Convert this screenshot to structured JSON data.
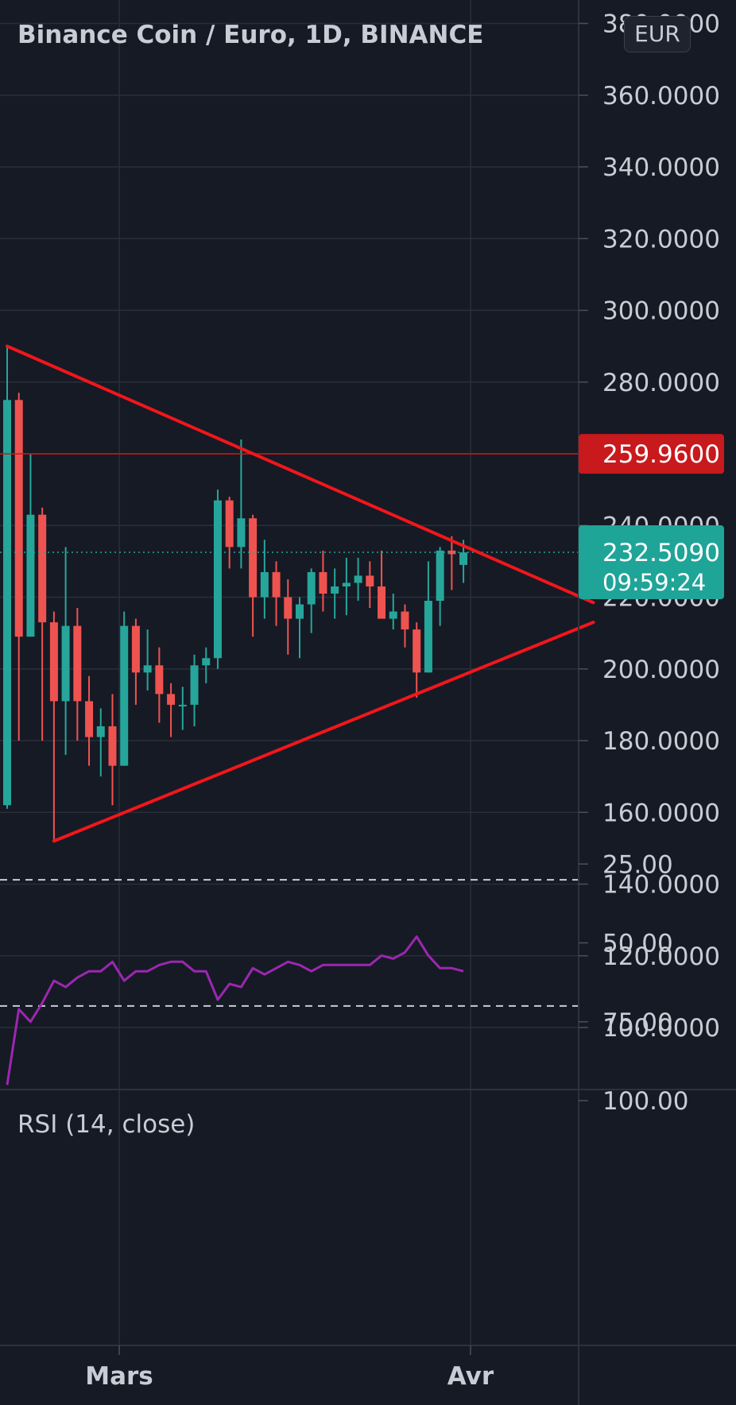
{
  "header": {
    "title": "Binance Coin / Euro, 1D, BINANCE",
    "currency_button": "EUR"
  },
  "colors": {
    "background": "#161a25",
    "grid": "#2a2e39",
    "up": "#26a69a",
    "down": "#ef5350",
    "trendline": "#f2161b",
    "resistance_label_bg": "#c8191c",
    "price_label_bg": "#1fa498",
    "rsi": "#9c27b0",
    "rsi_band": "#241d3a"
  },
  "chart_data": [
    {
      "type": "candlestick",
      "title": "Binance Coin / Euro, 1D, BINANCE",
      "xlabel": "",
      "ylabel": "",
      "x_ticks": [
        "Mars",
        "Avr"
      ],
      "y_ticks": [
        "100.0000",
        "120.0000",
        "140.0000",
        "160.0000",
        "180.0000",
        "200.0000",
        "220.0000",
        "240.0000",
        "260.0000",
        "280.0000",
        "300.0000",
        "320.0000",
        "340.0000",
        "360.0000",
        "380.0000"
      ],
      "ylim": [
        80,
        386
      ],
      "grid": true,
      "candles": [
        [
          162,
          290,
          161,
          275
        ],
        [
          275,
          277,
          180,
          209
        ],
        [
          209,
          260,
          209,
          243
        ],
        [
          243,
          245,
          180,
          213
        ],
        [
          213,
          216,
          152,
          191
        ],
        [
          191,
          234,
          176,
          212
        ],
        [
          212,
          217,
          180,
          191
        ],
        [
          191,
          198,
          173,
          181
        ],
        [
          181,
          189,
          170,
          184
        ],
        [
          184,
          193,
          162,
          173
        ],
        [
          173,
          216,
          173,
          212
        ],
        [
          212,
          214,
          190,
          199
        ],
        [
          199,
          211,
          194,
          201
        ],
        [
          201,
          206,
          185,
          193
        ],
        [
          193,
          196,
          181,
          190
        ],
        [
          190,
          195,
          183,
          190
        ],
        [
          190,
          204,
          184,
          201
        ],
        [
          201,
          206,
          196,
          203
        ],
        [
          203,
          250,
          200,
          247
        ],
        [
          247,
          248,
          228,
          234
        ],
        [
          234,
          264,
          228,
          242
        ],
        [
          242,
          243,
          209,
          220
        ],
        [
          220,
          236,
          214,
          227
        ],
        [
          227,
          230,
          212,
          220
        ],
        [
          220,
          225,
          204,
          214
        ],
        [
          214,
          220,
          203,
          218
        ],
        [
          218,
          228,
          210,
          227
        ],
        [
          227,
          233,
          216,
          221
        ],
        [
          221,
          228,
          214,
          223
        ],
        [
          223,
          231,
          215,
          224
        ],
        [
          224,
          231,
          219,
          226
        ],
        [
          226,
          230,
          217,
          223
        ],
        [
          223,
          233,
          215,
          214
        ],
        [
          214,
          221,
          211,
          216
        ],
        [
          216,
          218,
          206,
          211
        ],
        [
          211,
          213,
          192,
          199
        ],
        [
          199,
          230,
          199,
          219
        ],
        [
          219,
          234,
          212,
          233
        ],
        [
          233,
          237,
          222,
          232
        ],
        [
          229,
          236,
          224,
          232.5
        ]
      ],
      "lines": {
        "upper_trendline": [
          [
            0,
            290
          ],
          [
            50.1,
            218.5
          ]
        ],
        "lower_trendline": [
          [
            4,
            152
          ],
          [
            50.1,
            213
          ]
        ],
        "resistance": 259.96
      },
      "resistance_label": "259.9600",
      "last_price": 232.509,
      "last_price_label": "232.5090",
      "countdown": "09:59:24"
    },
    {
      "type": "line",
      "title": "RSI (14, close)",
      "y_ticks": [
        "100.00",
        "75.00",
        "50.00",
        "25.00"
      ],
      "ylim": [
        24,
        101
      ],
      "overbought": 70,
      "oversold": 30,
      "grid": true,
      "series": [
        {
          "name": "RSI",
          "values": [
            95,
            71,
            75,
            69,
            62,
            64,
            61,
            59,
            59,
            56,
            62,
            59,
            59,
            57,
            56,
            56,
            59,
            59,
            68,
            63,
            64,
            58,
            60,
            58,
            56,
            57,
            59,
            57,
            57,
            57,
            57,
            57,
            54,
            55,
            53,
            48,
            54,
            58,
            58,
            59
          ]
        }
      ]
    }
  ]
}
